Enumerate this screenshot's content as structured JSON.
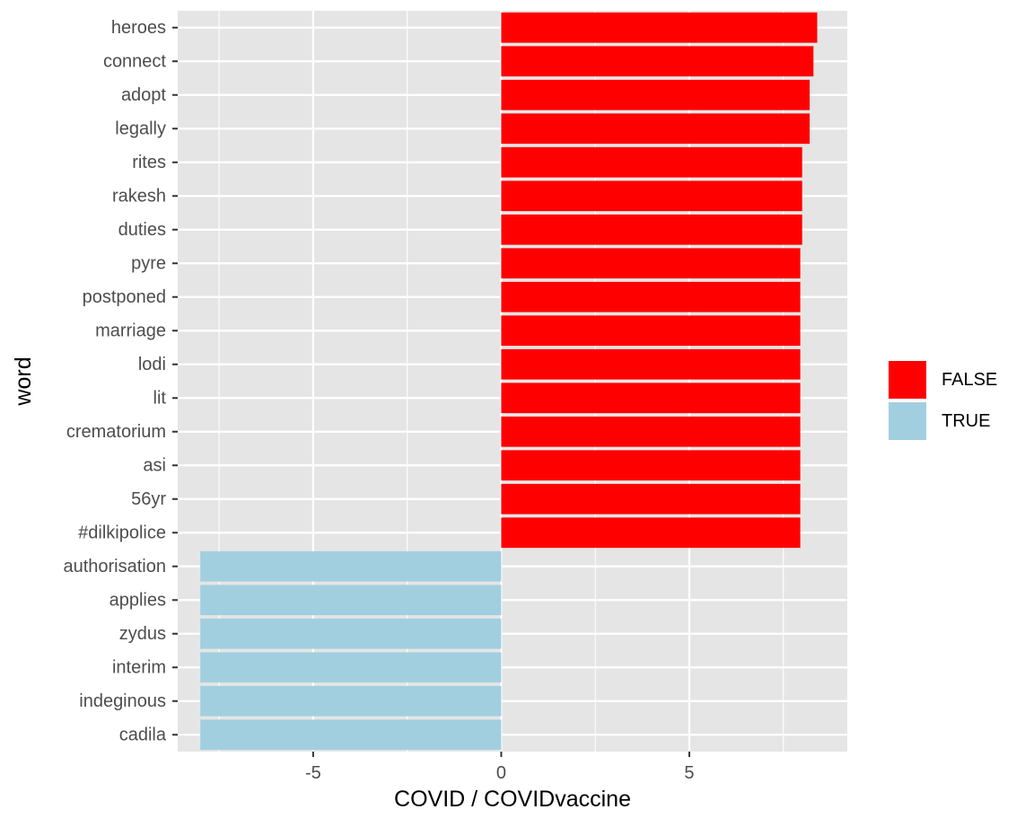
{
  "chart_data": {
    "type": "bar",
    "orientation": "horizontal",
    "xlabel": "COVID / COVIDvaccine",
    "ylabel": "word",
    "xlim": [
      -8.6,
      9.2
    ],
    "xticks": [
      -5,
      0,
      5
    ],
    "grid": true,
    "legend_position": "right",
    "categories": [
      "heroes",
      "connect",
      "adopt",
      "legally",
      "rites",
      "rakesh",
      "duties",
      "pyre",
      "postponed",
      "marriage",
      "lodi",
      "lit",
      "crematorium",
      "asi",
      "56yr",
      "#dilkipolice",
      "authorisation",
      "applies",
      "zydus",
      "interim",
      "indeginous",
      "cadila"
    ],
    "values": [
      8.4,
      8.3,
      8.2,
      8.2,
      8.0,
      8.0,
      8.0,
      7.95,
      7.95,
      7.95,
      7.95,
      7.95,
      7.95,
      7.95,
      7.95,
      7.95,
      -8.0,
      -8.0,
      -8.0,
      -8.0,
      -8.0,
      -8.0
    ],
    "groups": [
      "FALSE",
      "FALSE",
      "FALSE",
      "FALSE",
      "FALSE",
      "FALSE",
      "FALSE",
      "FALSE",
      "FALSE",
      "FALSE",
      "FALSE",
      "FALSE",
      "FALSE",
      "FALSE",
      "FALSE",
      "FALSE",
      "TRUE",
      "TRUE",
      "TRUE",
      "TRUE",
      "TRUE",
      "TRUE"
    ],
    "legend": [
      {
        "label": "FALSE",
        "color": "#ff0000"
      },
      {
        "label": "TRUE",
        "color": "#a2cfe0"
      }
    ],
    "colors": {
      "panel_background": "#e5e5e5",
      "grid_line": "#ffffff",
      "tick_text": "#4d4d4d",
      "tick_mark": "#333333"
    }
  }
}
